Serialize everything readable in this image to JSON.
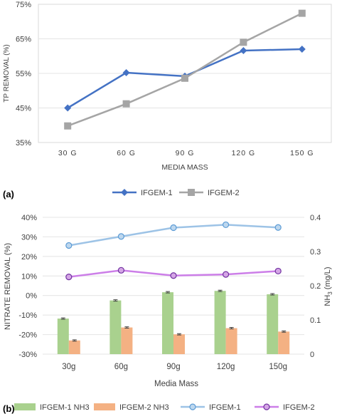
{
  "chart_data": [
    {
      "panel_label": "(a)",
      "type": "line",
      "categories": [
        "30 G",
        "60 G",
        "90 G",
        "120 G",
        "150 G"
      ],
      "xlabel": "MEDIA MASS",
      "ylabel": "TP REMOVAL (%)",
      "ylim": [
        35,
        75
      ],
      "yticks": [
        "35%",
        "45%",
        "55%",
        "65%",
        "75%"
      ],
      "grid": "horizontal",
      "legend": "bottom",
      "series": [
        {
          "name": "IFGEM-1",
          "color": "#4472C4",
          "marker": "diamond",
          "values": [
            45,
            55.2,
            54.2,
            61.6,
            62
          ]
        },
        {
          "name": "IFGEM-2",
          "color": "#A5A5A5",
          "marker": "square",
          "values": [
            39.8,
            46.2,
            53.6,
            64,
            72.4
          ]
        }
      ]
    },
    {
      "panel_label": "(b)",
      "type": "bar+line",
      "categories": [
        "30g",
        "60g",
        "90g",
        "120g",
        "150g"
      ],
      "xlabel": "Media Mass",
      "ylabel_left": "NITRATE REMOVAL (%)",
      "ylabel_right_prefix": "NH",
      "ylabel_right_sub": "3",
      "ylabel_right_suffix": " (mg/L)",
      "ylim_left": [
        -30,
        40
      ],
      "yticks_left": [
        "-30%",
        "-20%",
        "-10%",
        "0%",
        "10%",
        "20%",
        "30%",
        "40%"
      ],
      "ylim_right": [
        0,
        0.4
      ],
      "yticks_right": [
        "0",
        "0.1",
        "0.2",
        "0.3",
        "0.4"
      ],
      "grid": "horizontal",
      "legend": "bottom",
      "bar_series": [
        {
          "name": "IFGEM-1 NH3",
          "color": "#A9D18E",
          "axis": "right",
          "values": [
            0.104,
            0.157,
            0.181,
            0.185,
            0.175
          ],
          "errors": [
            0.002,
            0.002,
            0.002,
            0.002,
            0.002
          ]
        },
        {
          "name": "IFGEM-2 NH3",
          "color": "#F4B183",
          "axis": "right",
          "values": [
            0.04,
            0.078,
            0.058,
            0.076,
            0.066
          ],
          "errors": [
            0.002,
            0.002,
            0.002,
            0.002,
            0.002
          ]
        }
      ],
      "line_series": [
        {
          "name": "IFGEM-1",
          "color": "#9DC3E6",
          "marker_fill": "#BDD7EE",
          "marker_stroke": "#5B9BD5",
          "axis": "left",
          "values": [
            25.6,
            30.2,
            34.7,
            36.2,
            34.8
          ]
        },
        {
          "name": "IFGEM-2",
          "color": "#CC7EE8",
          "marker_fill": "#D5A6E6",
          "marker_stroke": "#7030A0",
          "axis": "left",
          "values": [
            9.5,
            12.9,
            10.2,
            10.8,
            12.5
          ]
        }
      ]
    }
  ]
}
